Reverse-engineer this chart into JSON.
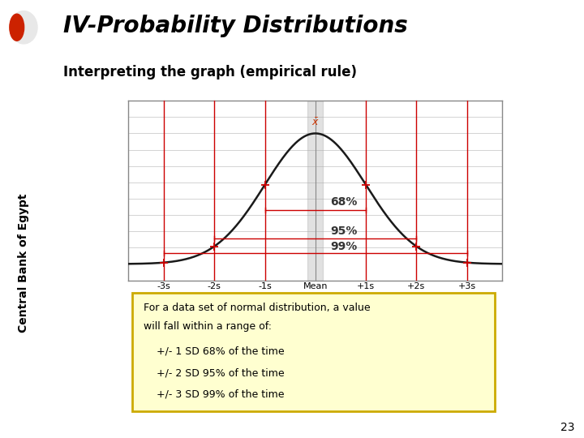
{
  "title": "IV-Probability Distributions",
  "subtitle": "Interpreting the graph (empirical rule)",
  "page_number": "23",
  "sidebar_text": "Central Bank of Egypt",
  "note_lines": [
    "For a data set of normal distribution, a value",
    "will fall within a range of:",
    "    +/- 1 SD 68% of the time",
    "    +/- 2 SD 95% of the time",
    "    +/- 3 SD 99% of the time"
  ],
  "percentages": [
    "68%",
    "95%",
    "99%"
  ],
  "x_labels": [
    "-3s",
    "-2s",
    "-1s",
    "Mean",
    "+1s",
    "+2s",
    "+3s"
  ],
  "bg_color": "#ffffff",
  "title_color": "#000000",
  "curve_color": "#1a1a1a",
  "vline_color": "#cc0000",
  "note_border_color": "#ccaa00",
  "note_bg_color": "#ffffd0",
  "title_fontsize": 20,
  "subtitle_fontsize": 12,
  "note_fontsize": 9
}
